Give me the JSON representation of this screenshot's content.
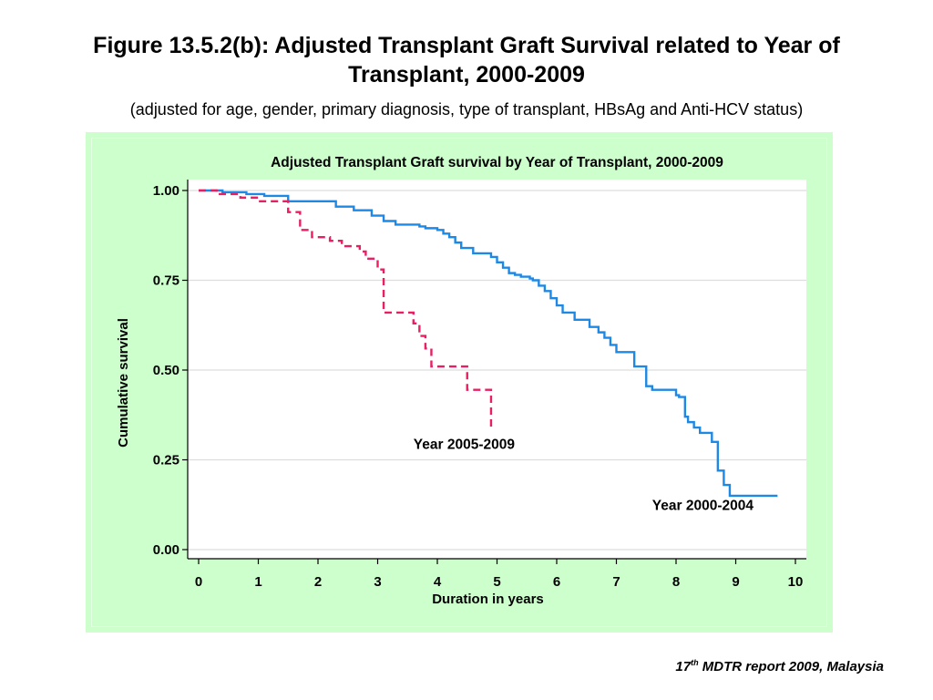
{
  "slide": {
    "title": "Figure 13.5.2(b): Adjusted Transplant Graft Survival related to Year of Transplant, 2000-2009",
    "subtitle": "(adjusted for age, gender, primary diagnosis, type of transplant, HBsAg and Anti-HCV status)",
    "footer_num": "17",
    "footer_sup": "th",
    "footer_rest": " MDTR report 2009, Malaysia"
  },
  "colors": {
    "panel_background": "#ccffcc",
    "plot_background": "#ffffff",
    "gridline": "#dddddd",
    "series_2000_2004": "#1e88e5",
    "series_2005_2009": "#e91e63"
  },
  "chart_data": {
    "type": "line",
    "title": "Adjusted Transplant Graft survival by Year of Transplant, 2000-2009",
    "xlabel": "Duration in years",
    "ylabel": "Cumulative survival",
    "xlim": [
      0,
      10
    ],
    "ylim": [
      0,
      1
    ],
    "xticks": [
      "0",
      "1",
      "2",
      "3",
      "4",
      "5",
      "6",
      "7",
      "8",
      "9",
      "10"
    ],
    "yticks": [
      "0.00",
      "0.25",
      "0.50",
      "0.75",
      "1.00"
    ],
    "grid": true,
    "step": true,
    "series": [
      {
        "name": "Year 2000-2004",
        "line_style": "solid",
        "color": "#1e88e5",
        "label_x": 7.6,
        "label_y": 0.11,
        "x": [
          0.0,
          0.4,
          0.8,
          1.1,
          1.5,
          2.3,
          2.6,
          2.9,
          3.1,
          3.3,
          3.7,
          3.8,
          4.0,
          4.1,
          4.2,
          4.3,
          4.4,
          4.6,
          4.9,
          5.0,
          5.1,
          5.2,
          5.3,
          5.4,
          5.55,
          5.6,
          5.7,
          5.8,
          5.9,
          6.0,
          6.1,
          6.3,
          6.55,
          6.7,
          6.8,
          6.9,
          7.0,
          7.3,
          7.5,
          7.6,
          8.0,
          8.05,
          8.15,
          8.2,
          8.3,
          8.4,
          8.6,
          8.7,
          8.8,
          8.9,
          9.7
        ],
        "y": [
          1.0,
          0.995,
          0.99,
          0.985,
          0.97,
          0.955,
          0.945,
          0.93,
          0.915,
          0.905,
          0.9,
          0.895,
          0.89,
          0.88,
          0.87,
          0.855,
          0.84,
          0.825,
          0.815,
          0.8,
          0.785,
          0.77,
          0.765,
          0.76,
          0.755,
          0.75,
          0.735,
          0.72,
          0.7,
          0.68,
          0.66,
          0.64,
          0.62,
          0.605,
          0.59,
          0.57,
          0.55,
          0.51,
          0.455,
          0.445,
          0.43,
          0.425,
          0.37,
          0.355,
          0.34,
          0.325,
          0.3,
          0.22,
          0.18,
          0.15,
          0.15
        ]
      },
      {
        "name": "Year 2005-2009",
        "line_style": "dashed",
        "color": "#e91e63",
        "label_x": 3.6,
        "label_y": 0.28,
        "x": [
          0.0,
          0.3,
          0.7,
          1.0,
          1.5,
          1.7,
          1.9,
          2.2,
          2.4,
          2.7,
          2.8,
          3.0,
          3.1,
          3.6,
          3.7,
          3.8,
          3.9,
          4.5,
          4.9
        ],
        "y": [
          1.0,
          0.99,
          0.98,
          0.97,
          0.94,
          0.89,
          0.87,
          0.86,
          0.845,
          0.83,
          0.81,
          0.78,
          0.66,
          0.63,
          0.595,
          0.56,
          0.51,
          0.445,
          0.33
        ]
      }
    ]
  }
}
